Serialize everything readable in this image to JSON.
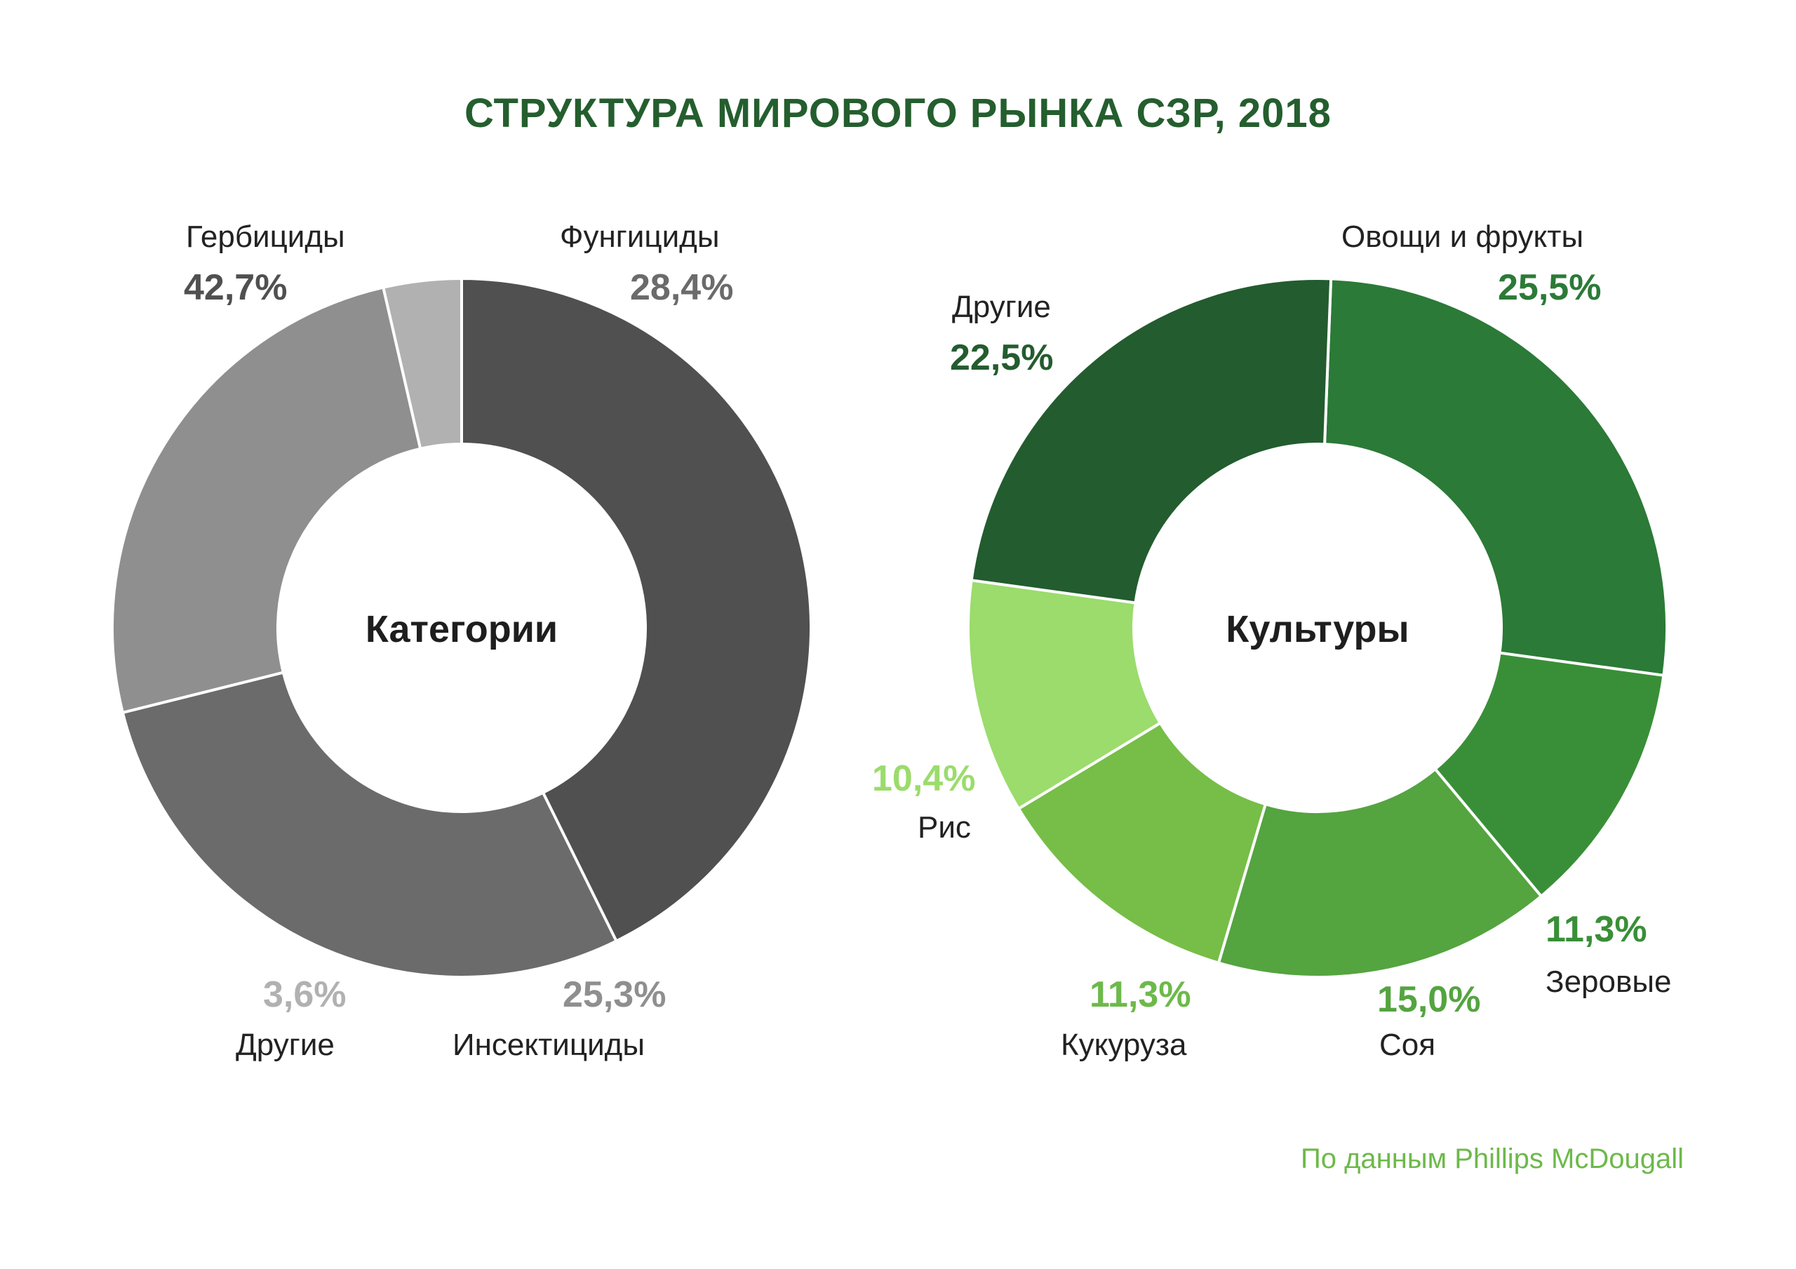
{
  "title": "СТРУКТУРА МИРОВОГО РЫНКА СЗР, 2018",
  "title_color": "#245E2E",
  "footer": {
    "text": "По данным Phillips McDougall",
    "color": "#6DB94A"
  },
  "chart_data": [
    {
      "type": "pie",
      "subtype": "donut",
      "title": "Категории",
      "center_label": "Категории",
      "unit": "%",
      "slices": [
        {
          "label": "Гербициды",
          "value": 42.7,
          "display": "42,7%",
          "color": "#505050",
          "value_color": "#505050"
        },
        {
          "label": "Фунгициды",
          "value": 28.4,
          "display": "28,4%",
          "color": "#6B6B6B",
          "value_color": "#6B6B6B"
        },
        {
          "label": "Инсектициды",
          "value": 25.3,
          "display": "25,3%",
          "color": "#8F8F8F",
          "value_color": "#8F8F8F"
        },
        {
          "label": "Другие",
          "value": 3.6,
          "display": "3,6%",
          "color": "#B1B1B1",
          "value_color": "#B1B1B1"
        }
      ]
    },
    {
      "type": "pie",
      "subtype": "donut",
      "title": "Культуры",
      "center_label": "Культуры",
      "unit": "%",
      "slices": [
        {
          "label": "Овощи и фрукты",
          "value": 25.5,
          "display": "25,5%",
          "color": "#2B7A37",
          "value_color": "#2B7A37"
        },
        {
          "label": "Зеровые",
          "value": 11.3,
          "display": "11,3%",
          "color": "#398F37",
          "value_color": "#398F37"
        },
        {
          "label": "Соя",
          "value": 15.0,
          "display": "15,0%",
          "color": "#54A440",
          "value_color": "#54A440"
        },
        {
          "label": "Кукуруза",
          "value": 11.3,
          "display": "11,3%",
          "color": "#76BE47",
          "value_color": "#6DB94A"
        },
        {
          "label": "Рис",
          "value": 10.4,
          "display": "10,4%",
          "color": "#9BDC6C",
          "value_color": "#9BDC6C"
        },
        {
          "label": "Другие",
          "value": 22.5,
          "display": "22,5%",
          "color": "#235C2F",
          "value_color": "#235C2F"
        }
      ]
    }
  ]
}
